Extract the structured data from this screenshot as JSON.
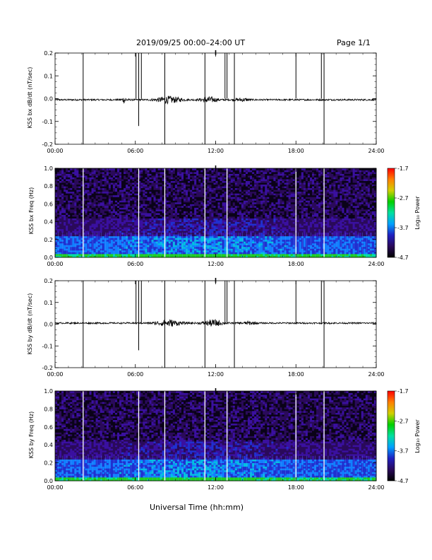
{
  "header": {
    "title": "2019/09/25  00:00–24:00 UT",
    "page_label": "Page 1/1"
  },
  "footer": {
    "xlabel": "Universal Time (hh:mm)"
  },
  "colors": {
    "trace": "#000000",
    "spike": "#000000",
    "gap": "#ffffff",
    "colorbar": [
      "#000000",
      "#2a0a5a",
      "#2020c0",
      "#00a0ff",
      "#00e0a0",
      "#00d000",
      "#d0d000",
      "#ff8000",
      "#ff0000"
    ]
  },
  "chart_data": [
    {
      "type": "line",
      "ylabel": "KSS bx dB/dt (nT/sec)",
      "xlim": [
        0,
        24
      ],
      "ylim": [
        -0.2,
        0.2
      ],
      "xticks": [
        "00:00",
        "06:00",
        "12:00",
        "18:00",
        "24:00"
      ],
      "yticks": [
        "0.2",
        "0.1",
        "0.0",
        "-0.1",
        "-0.2"
      ],
      "baseline": -0.005,
      "noise_bursts": [
        {
          "center": 5.2,
          "width": 0.4,
          "amp": 0.012
        },
        {
          "center": 8.5,
          "width": 1.8,
          "amp": 0.014
        },
        {
          "center": 11.5,
          "width": 1.2,
          "amp": 0.012
        },
        {
          "center": 14.0,
          "width": 1.0,
          "amp": 0.006
        }
      ],
      "spikes": [
        {
          "t": 2.1,
          "top": 0.2,
          "bottom": -0.2
        },
        {
          "t": 6.05,
          "top": 0.2,
          "bottom": 0.0
        },
        {
          "t": 6.25,
          "top": 0.2,
          "bottom": -0.12
        },
        {
          "t": 6.45,
          "top": 0.2,
          "bottom": 0.0
        },
        {
          "t": 8.2,
          "top": 0.2,
          "bottom": -0.2
        },
        {
          "t": 11.2,
          "top": 0.2,
          "bottom": -0.2
        },
        {
          "t": 12.7,
          "top": 0.2,
          "bottom": 0.0
        },
        {
          "t": 12.85,
          "top": 0.2,
          "bottom": 0.0
        },
        {
          "t": 13.4,
          "top": 0.2,
          "bottom": -0.2
        },
        {
          "t": 18.0,
          "top": 0.2,
          "bottom": 0.0
        },
        {
          "t": 19.9,
          "top": 0.2,
          "bottom": 0.0
        },
        {
          "t": 20.1,
          "top": 0.2,
          "bottom": -0.2
        }
      ]
    },
    {
      "type": "heatmap",
      "ylabel": "KSS bx Freq (Hz)",
      "xlim": [
        0,
        24
      ],
      "ylim": [
        0.0,
        1.0
      ],
      "xticks": [
        "00:00",
        "06:00",
        "12:00",
        "18:00",
        "24:00"
      ],
      "yticks": [
        "1.0",
        "0.8",
        "0.6",
        "0.4",
        "0.2",
        "0.0"
      ],
      "colorbar_label": "Log₁₀ Power",
      "colorbar_ticks": [
        "-1.7",
        "-2.7",
        "-3.7",
        "-4.7"
      ],
      "clim": [
        -4.7,
        -1.7
      ],
      "data_gaps": [
        2.1,
        6.25,
        8.2,
        11.2,
        12.85,
        18.0,
        20.1
      ]
    },
    {
      "type": "line",
      "ylabel": "KSS by dB/dt (nT/sec)",
      "xlim": [
        0,
        24
      ],
      "ylim": [
        -0.2,
        0.2
      ],
      "xticks": [
        "00:00",
        "06:00",
        "12:00",
        "18:00",
        "24:00"
      ],
      "yticks": [
        "0.2",
        "0.1",
        "0.0",
        "-0.1",
        "-0.2"
      ],
      "baseline": 0.005,
      "noise_bursts": [
        {
          "center": 8.5,
          "width": 1.8,
          "amp": 0.014
        },
        {
          "center": 11.8,
          "width": 1.4,
          "amp": 0.014
        },
        {
          "center": 14.5,
          "width": 1.0,
          "amp": 0.006
        }
      ],
      "spikes": [
        {
          "t": 2.1,
          "top": 0.2,
          "bottom": -0.2
        },
        {
          "t": 6.05,
          "top": 0.2,
          "bottom": 0.0
        },
        {
          "t": 6.25,
          "top": 0.2,
          "bottom": -0.12
        },
        {
          "t": 6.45,
          "top": 0.2,
          "bottom": 0.0
        },
        {
          "t": 8.2,
          "top": 0.2,
          "bottom": -0.2
        },
        {
          "t": 11.2,
          "top": 0.2,
          "bottom": -0.2
        },
        {
          "t": 12.7,
          "top": 0.2,
          "bottom": 0.0
        },
        {
          "t": 12.85,
          "top": 0.2,
          "bottom": 0.0
        },
        {
          "t": 13.4,
          "top": 0.2,
          "bottom": -0.2
        },
        {
          "t": 18.0,
          "top": 0.2,
          "bottom": 0.0
        },
        {
          "t": 19.9,
          "top": 0.2,
          "bottom": 0.0
        },
        {
          "t": 20.1,
          "top": 0.2,
          "bottom": -0.2
        }
      ]
    },
    {
      "type": "heatmap",
      "ylabel": "KSS by Freq (Hz)",
      "xlim": [
        0,
        24
      ],
      "ylim": [
        0.0,
        1.0
      ],
      "xticks": [
        "00:00",
        "06:00",
        "12:00",
        "18:00",
        "24:00"
      ],
      "yticks": [
        "1.0",
        "0.8",
        "0.6",
        "0.4",
        "0.2",
        "0.0"
      ],
      "colorbar_label": "Log₁₀ Power",
      "colorbar_ticks": [
        "-1.7",
        "-2.7",
        "-3.7",
        "-4.7"
      ],
      "clim": [
        -4.7,
        -1.7
      ],
      "data_gaps": [
        2.1,
        6.25,
        8.2,
        11.2,
        12.85,
        18.0,
        20.1
      ]
    }
  ]
}
